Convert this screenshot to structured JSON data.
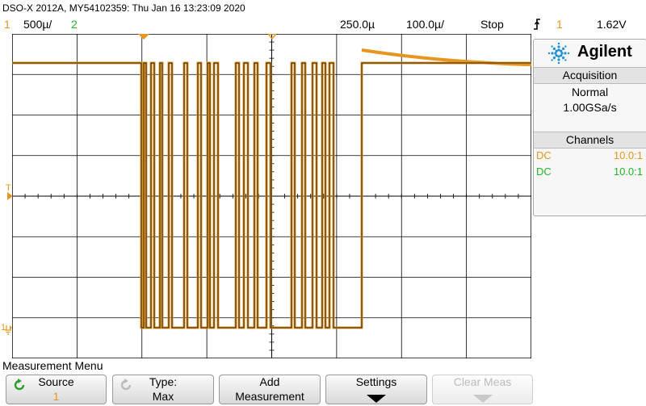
{
  "header": {
    "title": "DSO-X 2012A, MY54102359: Thu Jan 16 13:23:09 2020",
    "ch1_label": "1",
    "ch1_scale": "500µ/",
    "ch2_label": "2",
    "time_scale": "250.0µ",
    "time_ref": "100.0µ/",
    "run_state": "Stop",
    "trigger_icon": "trigger-edge-icon",
    "trigger_channel": "1",
    "trigger_level": "1.62V"
  },
  "panel": {
    "brand": "Agilent",
    "acquisition_title": "Acquisition",
    "acquisition_mode": "Normal",
    "sample_rate": "1.00GSa/s",
    "channels_title": "Channels",
    "channels": [
      {
        "coupling": "DC",
        "probe": "10.0:1",
        "color": "#e8951f"
      },
      {
        "coupling": "DC",
        "probe": "10.0:1",
        "color": "#25b425"
      }
    ]
  },
  "screen": {
    "ch1_marker": "1",
    "trigger_marker": "T",
    "trace_color": "#e8951f"
  },
  "menu": {
    "title": "Measurement Menu",
    "softkeys": [
      {
        "line1": "Source",
        "line2": "1",
        "icon": "rotate-knob-icon",
        "enabled": true
      },
      {
        "line1": "Type:",
        "line2": "Max",
        "icon": "rotate-knob-icon",
        "enabled": true
      },
      {
        "line1": "Add",
        "line2": "Measurement",
        "icon": "",
        "enabled": true
      },
      {
        "line1": "Settings",
        "line2": "",
        "icon": "arrow-down-icon",
        "enabled": true
      },
      {
        "line1": "Clear Meas",
        "line2": "",
        "icon": "arrow-down-icon",
        "enabled": false
      }
    ]
  }
}
